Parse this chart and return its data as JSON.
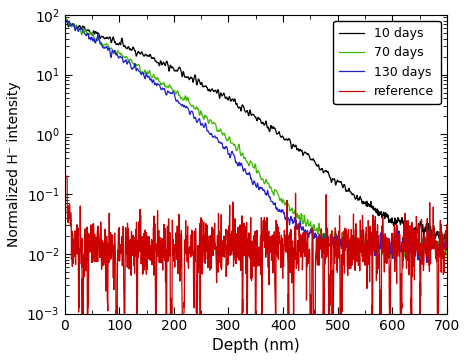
{
  "title": "",
  "xlabel": "Depth (nm)",
  "ylabel": "Normalized H⁻ intensity",
  "xlim": [
    0,
    700
  ],
  "ylim_log": [
    -3,
    2
  ],
  "legend_labels": [
    "10 days",
    "70 days",
    "130 days",
    "reference"
  ],
  "colors": [
    "#000000",
    "#3cb800",
    "#2222cc",
    "#cc0000"
  ],
  "linewidth": 0.9,
  "background_color": "#ffffff"
}
